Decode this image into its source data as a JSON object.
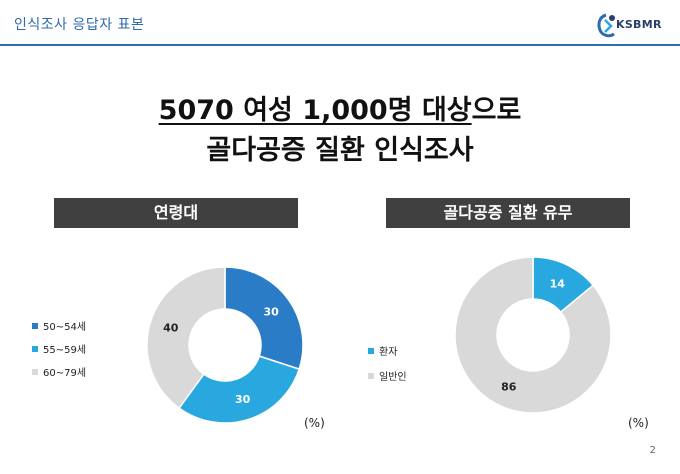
{
  "header": {
    "title": "인식조사 응답자 표본"
  },
  "logo": {
    "text": "KSBMR"
  },
  "title": {
    "line1_underlined": "5070 여성 1,000명 대상",
    "line1_rest": "으로",
    "line2": "골다공증 질환 인식조사"
  },
  "page_number": "2",
  "colors": {
    "accent": "#2f6bb0",
    "bar": "#404040",
    "blue_dark": "#2a7cc7",
    "blue_light": "#29a8e0",
    "grey": "#d9d9d9"
  },
  "chart_data": [
    {
      "type": "pie",
      "title": "연령대",
      "unit": "(%)",
      "categories": [
        "50~54세",
        "55~59세",
        "60~79세"
      ],
      "values": [
        30,
        30,
        40
      ],
      "colors": [
        "#2a7cc7",
        "#29a8e0",
        "#d9d9d9"
      ],
      "legend_position": "left"
    },
    {
      "type": "pie",
      "title": "골다공증 질환 유무",
      "unit": "(%)",
      "categories": [
        "환자",
        "일반인"
      ],
      "values": [
        14,
        86
      ],
      "colors": [
        "#29a8e0",
        "#d9d9d9"
      ],
      "legend_position": "left"
    }
  ]
}
